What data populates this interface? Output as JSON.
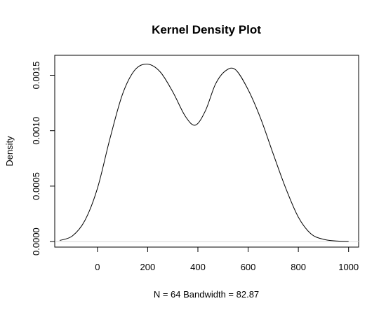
{
  "chart_data": {
    "type": "line",
    "title": "Kernel Density Plot",
    "xlabel": "N = 64   Bandwidth = 82.87",
    "ylabel": "Density",
    "xlim": [
      -170,
      1040
    ],
    "ylim": [
      -5e-05,
      0.00168
    ],
    "x_ticks": [
      0,
      200,
      400,
      600,
      800,
      1000
    ],
    "x_tick_labels": [
      "0",
      "200",
      "400",
      "600",
      "800",
      "1000"
    ],
    "y_ticks": [
      0,
      0.0005,
      0.001,
      0.0015
    ],
    "y_tick_labels": [
      "0.0000",
      "0.0005",
      "0.0010",
      "0.0015"
    ],
    "grid": false,
    "zero_line": true,
    "series": [
      {
        "color": "#000000",
        "x": [
          -150,
          -100,
          -50,
          0,
          50,
          100,
          150,
          200,
          250,
          300,
          350,
          390,
          430,
          470,
          510,
          550,
          600,
          650,
          700,
          750,
          800,
          850,
          900,
          950,
          1000
        ],
        "y": [
          1e-05,
          5e-05,
          0.00019,
          0.00048,
          0.00093,
          0.00133,
          0.00155,
          0.0016,
          0.00153,
          0.00135,
          0.00113,
          0.00105,
          0.00118,
          0.00142,
          0.00154,
          0.00155,
          0.00137,
          0.00111,
          0.00079,
          0.00048,
          0.00022,
          7e-05,
          2e-05,
          5e-06,
          1e-06
        ]
      }
    ]
  }
}
